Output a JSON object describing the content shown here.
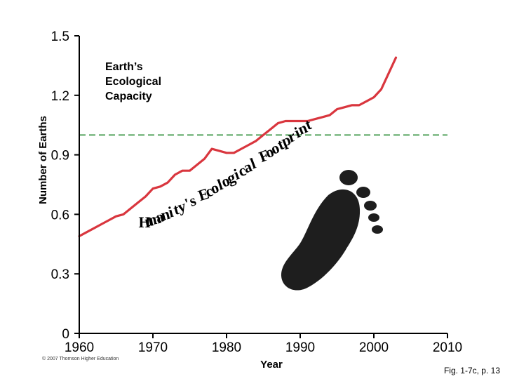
{
  "chart_data": {
    "type": "line",
    "ylabel": "Number of Earths",
    "xlabel": "Year",
    "xlim": [
      1960,
      2010
    ],
    "ylim": [
      0,
      1.5
    ],
    "x_ticks": [
      "1960",
      "1970",
      "1980",
      "1990",
      "2000",
      "2010"
    ],
    "y_ticks": [
      "0",
      "0.3",
      "0.6",
      "0.9",
      "1.2",
      "1.5"
    ],
    "grid": false,
    "series": [
      {
        "name": "Humanity's Ecological Footprint",
        "color": "#d9363e",
        "x": [
          1960,
          1961,
          1962,
          1963,
          1964,
          1965,
          1966,
          1967,
          1968,
          1969,
          1970,
          1971,
          1972,
          1973,
          1974,
          1975,
          1976,
          1977,
          1978,
          1979,
          1980,
          1981,
          1982,
          1983,
          1984,
          1985,
          1986,
          1987,
          1988,
          1989,
          1990,
          1991,
          1992,
          1993,
          1994,
          1995,
          1996,
          1997,
          1998,
          1999,
          2000,
          2001,
          2002,
          2003
        ],
        "y": [
          0.49,
          0.51,
          0.53,
          0.55,
          0.57,
          0.59,
          0.6,
          0.63,
          0.66,
          0.69,
          0.73,
          0.74,
          0.76,
          0.8,
          0.82,
          0.82,
          0.85,
          0.88,
          0.93,
          0.92,
          0.91,
          0.91,
          0.93,
          0.95,
          0.97,
          1.0,
          1.03,
          1.06,
          1.07,
          1.07,
          1.07,
          1.07,
          1.08,
          1.09,
          1.1,
          1.13,
          1.14,
          1.15,
          1.15,
          1.17,
          1.19,
          1.23,
          1.31,
          1.39
        ]
      }
    ],
    "reference_line": {
      "label": "Earth's Ecological Capacity",
      "y": 1.0,
      "color": "#2f8f3a"
    },
    "annotations": {
      "capacity_lines": [
        "Earth’s",
        "Ecological",
        "Capacity"
      ],
      "footprint_arc_text": "Humanity's Ecological Footprint"
    }
  },
  "credit": "© 2007 Thomson Higher Education",
  "figure_caption": "Fig. 1-7c, p. 13",
  "colors": {
    "axis": "#000000",
    "footprint_icon": "#1e1e1e"
  },
  "icons": [
    "footprint-icon"
  ]
}
